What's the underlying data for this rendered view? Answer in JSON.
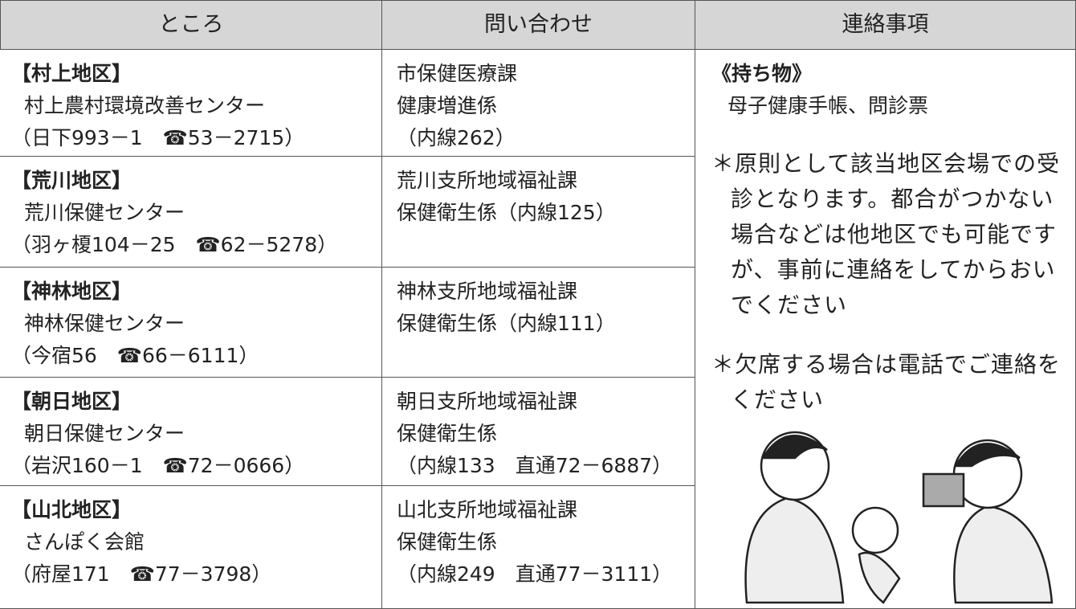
{
  "header": [
    "ところ",
    "問い合わせ",
    "連絡事項"
  ],
  "rows": [
    {
      "place": [
        "【村上地区】",
        "村上農村環境改善センター",
        "（日下993－1　☎53－2715）"
      ],
      "contact": [
        "市保健医療課",
        "健康増進係",
        "（内線262）"
      ]
    },
    {
      "place": [
        "【荒川地区】",
        "荒川保健センター",
        "（羽ヶ榎104－25　☎62－5278）"
      ],
      "contact": [
        "荒川支所地域福祉課",
        "保健衛生係（内線125）"
      ]
    },
    {
      "place": [
        "【神林地区】",
        "神林保健センター",
        "（今宿56　☎66－6111）"
      ],
      "contact": [
        "神林支所地域福祉課",
        "保健衛生係（内線111）"
      ]
    },
    {
      "place": [
        "【朝日地区】",
        "朝日保健センター",
        "（岩沢160－1　☎72－0666）"
      ],
      "contact": [
        "朝日支所地域福祉課",
        "保健衛生係",
        "（内線133　直通72－6887）"
      ]
    },
    {
      "place": [
        "【山北地区】",
        "さんぽく会館",
        "（府屋171　☎77－3798）"
      ],
      "contact": [
        "山北支所地域福祉課",
        "保健衛生係",
        "（内線249　直通77－3111）"
      ]
    }
  ],
  "notes": {
    "heading": "《持ち物》",
    "items": "母子健康手帳、問診票",
    "remarks": [
      "＊原則として該当地区会場での受診となります。都合がつかない場合などは他地区でも可能ですが、事前に連絡をしてからおいでください",
      "＊欠席する場合は電話でご連絡をください"
    ]
  }
}
